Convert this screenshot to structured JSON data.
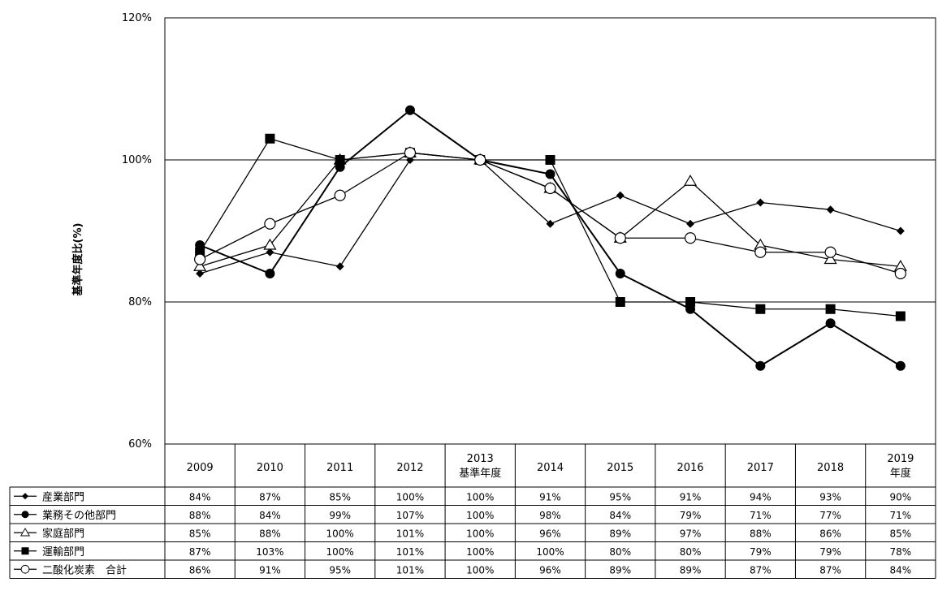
{
  "chart_data": {
    "type": "line",
    "ylabel": "基準年度比(%)",
    "yticks": [
      "60%",
      "80%",
      "100%",
      "120%"
    ],
    "ylim": [
      60,
      120
    ],
    "grid": "horizontal",
    "categories": [
      {
        "year": "2009",
        "sub": ""
      },
      {
        "year": "2010",
        "sub": ""
      },
      {
        "year": "2011",
        "sub": ""
      },
      {
        "year": "2012",
        "sub": ""
      },
      {
        "year": "2013",
        "sub": "基準年度"
      },
      {
        "year": "2014",
        "sub": ""
      },
      {
        "year": "2015",
        "sub": ""
      },
      {
        "year": "2016",
        "sub": ""
      },
      {
        "year": "2017",
        "sub": ""
      },
      {
        "year": "2018",
        "sub": ""
      },
      {
        "year": "2019",
        "sub": "年度"
      }
    ],
    "series": [
      {
        "name": "産業部門",
        "marker": "diamond",
        "values": [
          84,
          87,
          85,
          100,
          100,
          91,
          95,
          91,
          94,
          93,
          90
        ],
        "labels": [
          "84%",
          "87%",
          "85%",
          "100%",
          "100%",
          "91%",
          "95%",
          "91%",
          "94%",
          "93%",
          "90%"
        ]
      },
      {
        "name": "業務その他部門",
        "marker": "filled-circle",
        "values": [
          88,
          84,
          99,
          107,
          100,
          98,
          84,
          79,
          71,
          77,
          71
        ],
        "labels": [
          "88%",
          "84%",
          "99%",
          "107%",
          "100%",
          "98%",
          "84%",
          "79%",
          "71%",
          "77%",
          "71%"
        ]
      },
      {
        "name": "家庭部門",
        "marker": "open-triangle",
        "values": [
          85,
          88,
          100,
          101,
          100,
          96,
          89,
          97,
          88,
          86,
          85
        ],
        "labels": [
          "85%",
          "88%",
          "100%",
          "101%",
          "100%",
          "96%",
          "89%",
          "97%",
          "88%",
          "86%",
          "85%"
        ]
      },
      {
        "name": "運輸部門",
        "marker": "filled-square",
        "values": [
          87,
          103,
          100,
          101,
          100,
          100,
          80,
          80,
          79,
          79,
          78
        ],
        "labels": [
          "87%",
          "103%",
          "100%",
          "101%",
          "100%",
          "100%",
          "80%",
          "80%",
          "79%",
          "79%",
          "78%"
        ]
      },
      {
        "name": "二酸化炭素　合計",
        "marker": "open-circle",
        "values": [
          86,
          91,
          95,
          101,
          100,
          96,
          89,
          89,
          87,
          87,
          84
        ],
        "labels": [
          "86%",
          "91%",
          "95%",
          "101%",
          "100%",
          "96%",
          "89%",
          "89%",
          "87%",
          "87%",
          "84%"
        ]
      }
    ]
  }
}
